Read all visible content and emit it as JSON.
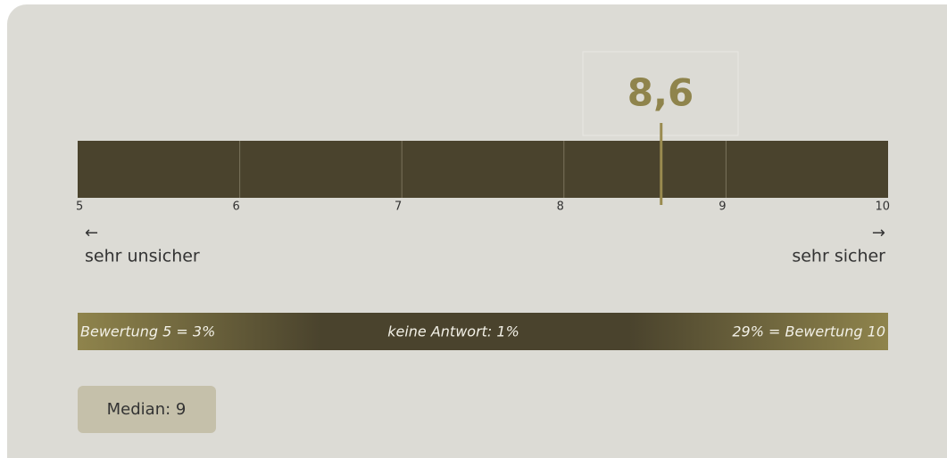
{
  "chart_data": {
    "type": "gauge",
    "value": 8.6,
    "value_label": "8,6",
    "xlim": [
      5,
      10
    ],
    "xticks": [
      5,
      6,
      7,
      8,
      9,
      10
    ],
    "left_arrow": "←",
    "left_label": "sehr unsicher",
    "right_arrow": "→",
    "right_label": "sehr sicher",
    "bar_color": "#4a432d",
    "marker_color": "#9a8b4f",
    "distribution": {
      "left": "Bewertung 5 = 3%",
      "center": "keine Antwort: 1%",
      "right": "29% = Bewertung 10"
    },
    "median": "Median: 9"
  }
}
